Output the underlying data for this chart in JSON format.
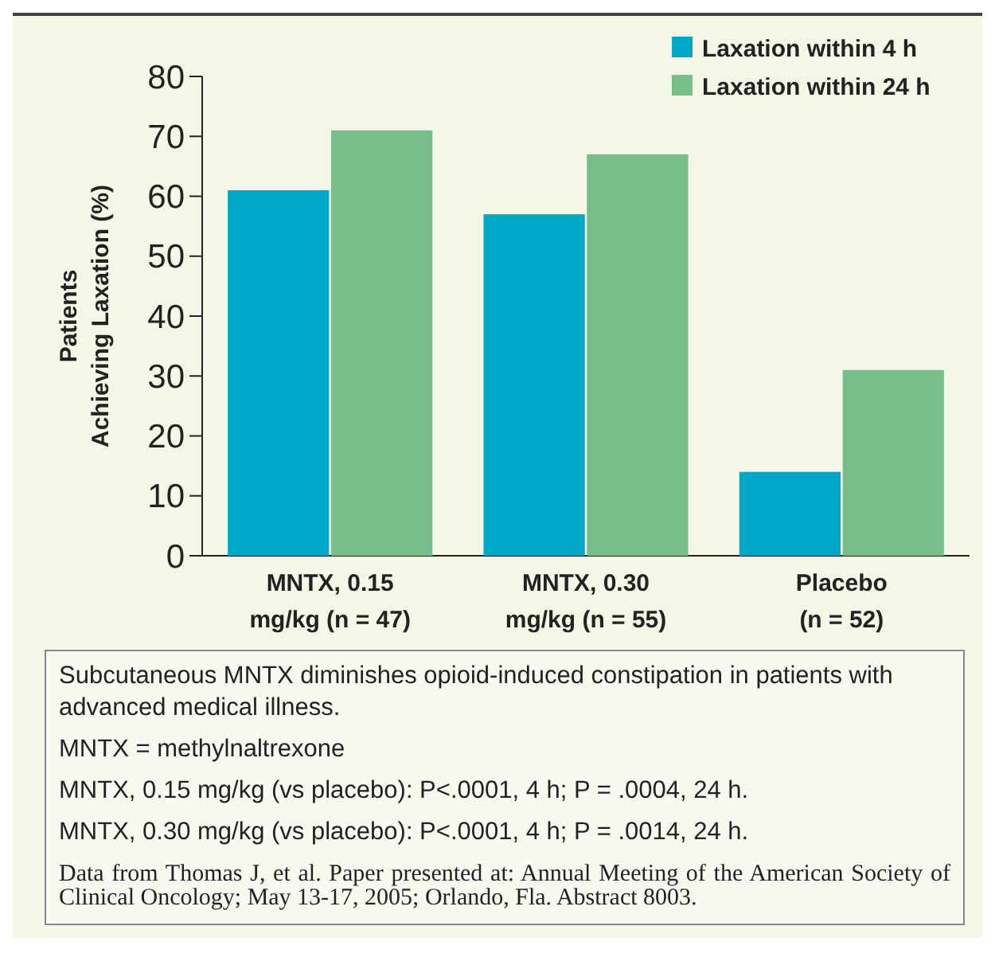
{
  "chart_data": {
    "type": "bar",
    "ylabel": "Patients\nAchieving Laxation (%)",
    "categories": [
      "MNTX, 0.15\nmg/kg (n = 47)",
      "MNTX, 0.30\nmg/kg (n = 55)",
      "Placebo\n(n = 52)"
    ],
    "series": [
      {
        "name": "Laxation within 4 h",
        "color": "#00a8c8",
        "values": [
          61,
          57,
          14
        ]
      },
      {
        "name": "Laxation within 24 h",
        "color": "#78be8a",
        "values": [
          71,
          67,
          31
        ]
      }
    ],
    "ylim": [
      0,
      80
    ],
    "yticks": [
      0,
      10,
      20,
      30,
      40,
      50,
      60,
      70,
      80
    ],
    "grid": false,
    "legend": "top right",
    "annotations": [
      "Subcutaneous MNTX diminishes opioid-induced constipation in patients with advanced medical illness.",
      "MNTX = methylnaltrexone",
      "MNTX, 0.15 mg/kg (vs placebo): P<.0001, 4 h; P = .0004, 24 h.",
      "MNTX, 0.30 mg/kg (vs placebo): P<.0001, 4 h; P = .0014, 24 h.",
      "Data from Thomas J, et al. Paper presented at: Annual Meeting of the American Society of Clinical Oncology; May 13-17, 2005; Orlando, Fla. Abstract 8003."
    ]
  }
}
